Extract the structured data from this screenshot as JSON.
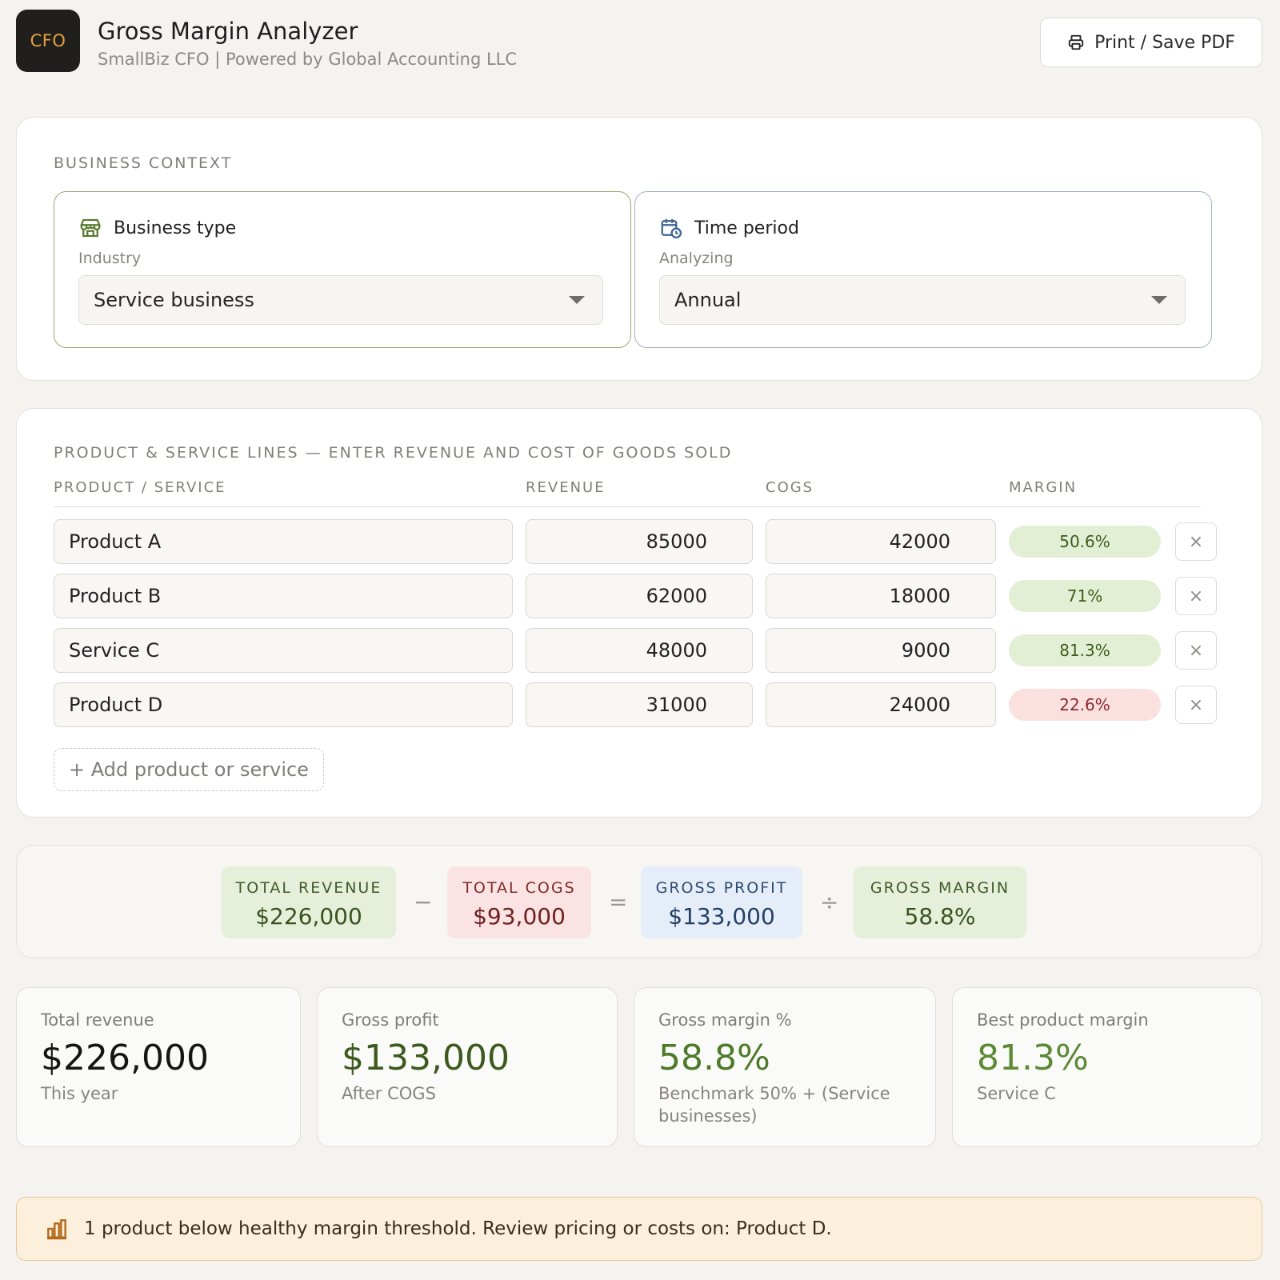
{
  "header": {
    "logo_text": "CFO",
    "title": "Gross Margin Analyzer",
    "subtitle": "SmallBiz CFO | Powered by Global Accounting LLC",
    "print_label": "Print / Save PDF"
  },
  "context": {
    "section_label": "BUSINESS CONTEXT",
    "business_type": {
      "title": "Business type",
      "sub": "Industry",
      "value": "Service business",
      "icon": "storefront-icon"
    },
    "time_period": {
      "title": "Time period",
      "sub": "Analyzing",
      "value": "Annual",
      "icon": "calendar-clock-icon"
    }
  },
  "lines": {
    "section_label": "PRODUCT & SERVICE LINES — ENTER REVENUE AND COST OF GOODS SOLD",
    "columns": [
      "PRODUCT / SERVICE",
      "REVENUE",
      "COGS",
      "MARGIN"
    ],
    "rows": [
      {
        "name": "Product A",
        "revenue": "85000",
        "cogs": "42000",
        "margin": "50.6%",
        "status": "good"
      },
      {
        "name": "Product B",
        "revenue": "62000",
        "cogs": "18000",
        "margin": "71%",
        "status": "good"
      },
      {
        "name": "Service C",
        "revenue": "48000",
        "cogs": "9000",
        "margin": "81.3%",
        "status": "good"
      },
      {
        "name": "Product D",
        "revenue": "31000",
        "cogs": "24000",
        "margin": "22.6%",
        "status": "bad"
      }
    ],
    "remove_symbol": "×",
    "add_label": "+ Add product or service"
  },
  "formula": {
    "total_revenue": {
      "label": "TOTAL REVENUE",
      "value": "$226,000"
    },
    "minus": "−",
    "total_cogs": {
      "label": "TOTAL COGS",
      "value": "$93,000"
    },
    "equals": "=",
    "gross_profit": {
      "label": "GROSS PROFIT",
      "value": "$133,000"
    },
    "divide": "÷",
    "gross_margin": {
      "label": "GROSS MARGIN",
      "value": "58.8%"
    }
  },
  "stats": [
    {
      "label": "Total revenue",
      "value": "$226,000",
      "note": "This year",
      "color": "#151515"
    },
    {
      "label": "Gross profit",
      "value": "$133,000",
      "note": "After COGS",
      "color": "#3d5a1e"
    },
    {
      "label": "Gross margin %",
      "value": "58.8%",
      "note": "Benchmark 50% + (Service businesses)",
      "color": "#4d7a2a"
    },
    {
      "label": "Best product margin",
      "value": "81.3%",
      "note": "Service C",
      "color": "#5d8a36"
    }
  ],
  "alert": {
    "icon": "bar-chart-icon",
    "text": "1 product below healthy margin threshold. Review pricing or costs on: Product D."
  }
}
